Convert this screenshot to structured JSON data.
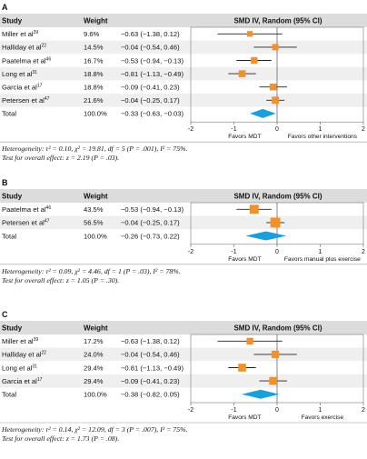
{
  "colors": {
    "header_bg": "#dcdcdc",
    "row_bg": "#efefef",
    "square": "#f0922b",
    "diamond": "#1a9fdc",
    "ci_line": "#222222"
  },
  "chart_data": [
    {
      "type": "forest",
      "panel": "A",
      "headers": [
        "Study",
        "Weight",
        "SMD IV, Random (95% CI)"
      ],
      "xlim": [
        -2,
        2
      ],
      "ticks": [
        "-2",
        "-1",
        "0",
        "1",
        "2"
      ],
      "favors_left": "Favors MDT",
      "favors_right": "Favors other interventions",
      "studies": [
        {
          "name": "Miller et al",
          "ref": "39",
          "weight": "9.6%",
          "ci_text": "−0.63 (−1.38, 0.12)",
          "smd": -0.63,
          "lo": -1.38,
          "hi": 0.12,
          "w": 9.6
        },
        {
          "name": "Halliday et al",
          "ref": "22",
          "weight": "14.5%",
          "ci_text": "−0.04 (−0.54, 0.46)",
          "smd": -0.04,
          "lo": -0.54,
          "hi": 0.46,
          "w": 14.5
        },
        {
          "name": "Paatelma et al",
          "ref": "46",
          "weight": "16.7%",
          "ci_text": "−0.53 (−0.94, −0.13)",
          "smd": -0.53,
          "lo": -0.94,
          "hi": -0.13,
          "w": 16.7
        },
        {
          "name": "Long et al",
          "ref": "31",
          "weight": "18.8%",
          "ci_text": "−0.81 (−1.13, −0.49)",
          "smd": -0.81,
          "lo": -1.13,
          "hi": -0.49,
          "w": 18.8
        },
        {
          "name": "Garcia et al",
          "ref": "17",
          "weight": "18.8%",
          "ci_text": "−0.09 (−0.41, 0.23)",
          "smd": -0.09,
          "lo": -0.41,
          "hi": 0.23,
          "w": 18.8
        },
        {
          "name": "Petersen et al",
          "ref": "47",
          "weight": "21.6%",
          "ci_text": "−0.04 (−0.25, 0.17)",
          "smd": -0.04,
          "lo": -0.25,
          "hi": 0.17,
          "w": 21.6
        }
      ],
      "total": {
        "name": "Total",
        "weight": "100.0%",
        "ci_text": "−0.33 (−0.63, −0.03)",
        "smd": -0.33,
        "lo": -0.63,
        "hi": -0.03
      },
      "heterogeneity": "Heterogeneity: τ² = 0.10, χ² = 19.81, df = 5 (P = .001), I² = 75%.",
      "overall": "Test for overall effect: z = 2.19 (P = .03)."
    },
    {
      "type": "forest",
      "panel": "B",
      "headers": [
        "Study",
        "Weight",
        "SMD IV, Random (95% CI)"
      ],
      "xlim": [
        -2,
        2
      ],
      "ticks": [
        "-2",
        "-1",
        "0",
        "1",
        "2"
      ],
      "favors_left": "Favors MDT",
      "favors_right": "Favors manual plus exercise",
      "studies": [
        {
          "name": "Paatelma et al",
          "ref": "46",
          "weight": "43.5%",
          "ci_text": "−0.53 (−0.94, −0.13)",
          "smd": -0.53,
          "lo": -0.94,
          "hi": -0.13,
          "w": 43.5
        },
        {
          "name": "Petersen et al",
          "ref": "47",
          "weight": "56.5%",
          "ci_text": "−0.04 (−0.25, 0.17)",
          "smd": -0.04,
          "lo": -0.25,
          "hi": 0.17,
          "w": 56.5
        }
      ],
      "total": {
        "name": "Total",
        "weight": "100.0%",
        "ci_text": "−0.26 (−0.73, 0.22)",
        "smd": -0.26,
        "lo": -0.73,
        "hi": 0.22
      },
      "heterogeneity": "Heterogeneity: τ² = 0.09, χ² = 4.46, df = 1 (P = .03), I² = 78%.",
      "overall": "Test for overall effect: z = 1.05 (P = .30)."
    },
    {
      "type": "forest",
      "panel": "C",
      "headers": [
        "Study",
        "Weight",
        "SMD IV, Random (95% CI)"
      ],
      "xlim": [
        -2,
        2
      ],
      "ticks": [
        "-2",
        "-1",
        "0",
        "1",
        "2"
      ],
      "favors_left": "Favors MDT",
      "favors_right": "Favors exercise",
      "studies": [
        {
          "name": "Miller et al",
          "ref": "39",
          "weight": "17.2%",
          "ci_text": "−0.63 (−1.38, 0.12)",
          "smd": -0.63,
          "lo": -1.38,
          "hi": 0.12,
          "w": 17.2
        },
        {
          "name": "Halliday et al",
          "ref": "22",
          "weight": "24.0%",
          "ci_text": "−0.04 (−0.54, 0.46)",
          "smd": -0.04,
          "lo": -0.54,
          "hi": 0.46,
          "w": 24.0
        },
        {
          "name": "Long et al",
          "ref": "31",
          "weight": "29.4%",
          "ci_text": "−0.81 (−1.13, −0.49)",
          "smd": -0.81,
          "lo": -1.13,
          "hi": -0.49,
          "w": 29.4
        },
        {
          "name": "Garcia et al",
          "ref": "17",
          "weight": "29.4%",
          "ci_text": "−0.09 (−0.41, 0.23)",
          "smd": -0.09,
          "lo": -0.41,
          "hi": 0.23,
          "w": 29.4
        }
      ],
      "total": {
        "name": "Total",
        "weight": "100.0%",
        "ci_text": "−0.38 (−0.82, 0.05)",
        "smd": -0.38,
        "lo": -0.82,
        "hi": 0.05
      },
      "heterogeneity": "Heterogeneity: τ² = 0.14, χ² = 12.09, df = 3 (P = .007), I² = 75%.",
      "overall": "Test for overall effect: z = 1.73 (P = .08)."
    }
  ]
}
